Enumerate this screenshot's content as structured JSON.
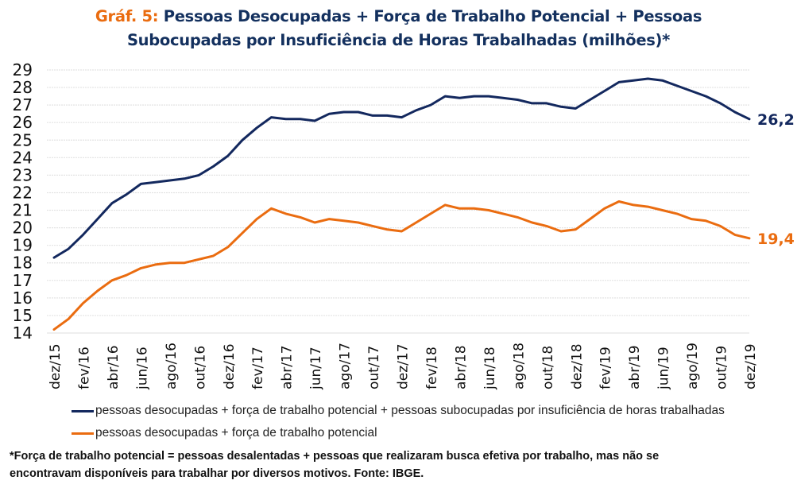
{
  "title": {
    "prefix": "Gráf. 5:",
    "line1": "Pessoas Desocupadas + Força de Trabalho Potencial + Pessoas",
    "line2": "Subocupadas por Insuficiência de Horas Trabalhadas (milhões)*"
  },
  "colors": {
    "blue": "#13285e",
    "orange": "#ea6c10",
    "grid": "#e3e3e3",
    "axis_text": "#111111"
  },
  "footnote": {
    "line1": "*Força de trabalho potencial = pessoas desalentadas + pessoas que realizaram busca efetiva por trabalho, mas não se",
    "line2": "encontravam disponíveis para trabalhar por diversos motivos. Fonte: IBGE."
  },
  "chart_data": {
    "type": "line",
    "title": "Gráf. 5: Pessoas Desocupadas + Força de Trabalho Potencial + Pessoas Subocupadas por Insuficiência de Horas Trabalhadas (milhões)*",
    "xlabel": "",
    "ylabel": "",
    "ylim": [
      14,
      29
    ],
    "yticks": [
      14,
      15,
      16,
      17,
      18,
      19,
      20,
      21,
      22,
      23,
      24,
      25,
      26,
      27,
      28,
      29
    ],
    "grid": true,
    "legend_position": "bottom",
    "x": [
      "dez/15",
      "jan/16",
      "fev/16",
      "mar/16",
      "abr/16",
      "mai/16",
      "jun/16",
      "jul/16",
      "ago/16",
      "set/16",
      "out/16",
      "nov/16",
      "dez/16",
      "jan/17",
      "fev/17",
      "mar/17",
      "abr/17",
      "mai/17",
      "jun/17",
      "jul/17",
      "ago/17",
      "set/17",
      "out/17",
      "nov/17",
      "dez/17",
      "jan/18",
      "fev/18",
      "mar/18",
      "abr/18",
      "mai/18",
      "jun/18",
      "jul/18",
      "ago/18",
      "set/18",
      "out/18",
      "nov/18",
      "dez/18",
      "jan/19",
      "fev/19",
      "mar/19",
      "abr/19",
      "mai/19",
      "jun/19",
      "jul/19",
      "ago/19",
      "set/19",
      "out/19",
      "nov/19",
      "dez/19"
    ],
    "xtick_labels": [
      "dez/15",
      "fev/16",
      "abr/16",
      "jun/16",
      "ago/16",
      "out/16",
      "dez/16",
      "fev/17",
      "abr/17",
      "jun/17",
      "ago/17",
      "out/17",
      "dez/17",
      "fev/18",
      "abr/18",
      "jun/18",
      "ago/18",
      "out/18",
      "dez/18",
      "fev/19",
      "abr/19",
      "jun/19",
      "ago/19",
      "out/19",
      "dez/19"
    ],
    "series": [
      {
        "name": "pessoas desocupadas + força de trabalho potencial + pessoas subocupadas por insuficiência de horas trabalhadas",
        "color": "#13285e",
        "end_label": "26,2",
        "values": [
          18.3,
          18.8,
          19.6,
          20.5,
          21.4,
          21.9,
          22.5,
          22.6,
          22.7,
          22.8,
          23.0,
          23.5,
          24.1,
          25.0,
          25.7,
          26.3,
          26.2,
          26.2,
          26.1,
          26.5,
          26.6,
          26.6,
          26.4,
          26.4,
          26.3,
          26.7,
          27.0,
          27.5,
          27.4,
          27.5,
          27.5,
          27.4,
          27.3,
          27.1,
          27.1,
          26.9,
          26.8,
          27.3,
          27.8,
          28.3,
          28.4,
          28.5,
          28.4,
          28.1,
          27.8,
          27.5,
          27.1,
          26.6,
          26.2
        ]
      },
      {
        "name": "pessoas desocupadas + força de trabalho potencial",
        "color": "#ea6c10",
        "end_label": "19,4",
        "values": [
          14.2,
          14.8,
          15.7,
          16.4,
          17.0,
          17.3,
          17.7,
          17.9,
          18.0,
          18.0,
          18.2,
          18.4,
          18.9,
          19.7,
          20.5,
          21.1,
          20.8,
          20.6,
          20.3,
          20.5,
          20.4,
          20.3,
          20.1,
          19.9,
          19.8,
          20.3,
          20.8,
          21.3,
          21.1,
          21.1,
          21.0,
          20.8,
          20.6,
          20.3,
          20.1,
          19.8,
          19.9,
          20.5,
          21.1,
          21.5,
          21.3,
          21.2,
          21.0,
          20.8,
          20.5,
          20.4,
          20.1,
          19.6,
          19.4
        ]
      }
    ]
  }
}
